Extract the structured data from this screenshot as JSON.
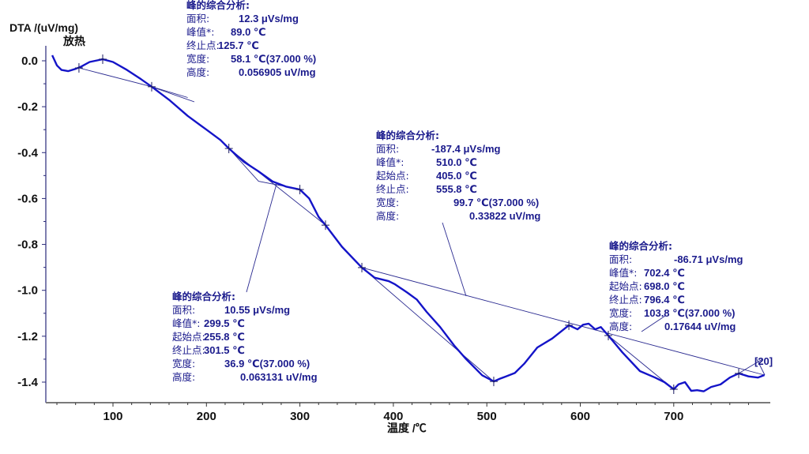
{
  "chart_data": {
    "type": "line",
    "title": "",
    "ylabel": "DTA /(uV/mg)",
    "ylabel_sub": "放热",
    "xlabel": "温度 /℃",
    "xlim": [
      28,
      803
    ],
    "ylim": [
      -1.5,
      0.05
    ],
    "x_ticks": [
      100,
      200,
      300,
      400,
      500,
      600,
      700
    ],
    "y_ticks": [
      0.0,
      -0.2,
      -0.4,
      -0.6,
      -0.8,
      -1.0,
      -1.2,
      -1.4
    ],
    "y_tick_labels": [
      "0.0",
      "-0.2",
      "-0.4",
      "-0.6",
      "-0.8",
      "-1.0",
      "-1.2",
      "-1.4"
    ],
    "grid": false,
    "series": [
      {
        "name": "DTA",
        "color": "#1414c8",
        "points": [
          [
            35,
            0.024
          ],
          [
            40,
            -0.02
          ],
          [
            45,
            -0.04
          ],
          [
            52,
            -0.045
          ],
          [
            60,
            -0.035
          ],
          [
            66,
            -0.025
          ],
          [
            75,
            -0.005
          ],
          [
            89,
            0.007
          ],
          [
            100,
            -0.005
          ],
          [
            115,
            -0.04
          ],
          [
            130,
            -0.08
          ],
          [
            141.4,
            -0.113
          ],
          [
            160,
            -0.17
          ],
          [
            180,
            -0.24
          ],
          [
            200,
            -0.3
          ],
          [
            215,
            -0.345
          ],
          [
            224,
            -0.382
          ],
          [
            240,
            -0.44
          ],
          [
            255,
            -0.48
          ],
          [
            270.8,
            -0.526
          ],
          [
            285,
            -0.548
          ],
          [
            300,
            -0.561
          ],
          [
            310,
            -0.6
          ],
          [
            320,
            -0.68
          ],
          [
            327.4,
            -0.716
          ],
          [
            345,
            -0.81
          ],
          [
            366.3,
            -0.901
          ],
          [
            380,
            -0.945
          ],
          [
            395,
            -0.96
          ],
          [
            401.8,
            -0.974
          ],
          [
            415,
            -1.01
          ],
          [
            425,
            -1.04
          ],
          [
            435.6,
            -1.094
          ],
          [
            450,
            -1.16
          ],
          [
            465,
            -1.24
          ],
          [
            477.9,
            -1.3
          ],
          [
            495,
            -1.37
          ],
          [
            507.4,
            -1.397
          ],
          [
            514,
            -1.385
          ],
          [
            520,
            -1.376
          ],
          [
            530,
            -1.36
          ],
          [
            540,
            -1.32
          ],
          [
            554,
            -1.249
          ],
          [
            570,
            -1.21
          ],
          [
            587.8,
            -1.152
          ],
          [
            597,
            -1.17
          ],
          [
            603,
            -1.15
          ],
          [
            609,
            -1.145
          ],
          [
            616,
            -1.17
          ],
          [
            622,
            -1.16
          ],
          [
            630,
            -1.197
          ],
          [
            645,
            -1.27
          ],
          [
            663.8,
            -1.352
          ],
          [
            680,
            -1.38
          ],
          [
            690,
            -1.4
          ],
          [
            700,
            -1.431
          ],
          [
            705,
            -1.41
          ],
          [
            712,
            -1.4
          ],
          [
            718.7,
            -1.438
          ],
          [
            725,
            -1.435
          ],
          [
            732,
            -1.44
          ],
          [
            740,
            -1.421
          ],
          [
            750,
            -1.41
          ],
          [
            760,
            -1.38
          ],
          [
            769.5,
            -1.362
          ],
          [
            780,
            -1.375
          ],
          [
            790,
            -1.38
          ],
          [
            797,
            -1.369
          ]
        ]
      }
    ],
    "baselines": [
      {
        "points": [
          [
            63.6,
            -0.031
          ],
          [
            141.4,
            -0.113
          ],
          [
            180,
            -0.16
          ]
        ]
      },
      {
        "points": [
          [
            224,
            -0.382
          ],
          [
            255.8,
            -0.525
          ],
          [
            301.5,
            -0.561
          ]
        ]
      },
      {
        "points": [
          [
            224,
            -0.382
          ],
          [
            327.4,
            -0.716
          ]
        ]
      },
      {
        "points": [
          [
            366.3,
            -0.901
          ],
          [
            797,
            -1.369
          ]
        ]
      },
      {
        "points": [
          [
            366.3,
            -0.901
          ],
          [
            507.4,
            -1.397
          ]
        ]
      },
      {
        "points": [
          [
            630,
            -1.197
          ],
          [
            700,
            -1.431
          ]
        ]
      },
      {
        "points": [
          [
            769.5,
            -1.362
          ],
          [
            795,
            -1.3
          ]
        ]
      }
    ],
    "markers": [
      [
        63.6,
        -0.031
      ],
      [
        89,
        0.007
      ],
      [
        141.4,
        -0.113
      ],
      [
        224,
        -0.382
      ],
      [
        300,
        -0.561
      ],
      [
        327.4,
        -0.716
      ],
      [
        366.3,
        -0.901
      ],
      [
        507.4,
        -1.397
      ],
      [
        587.8,
        -1.152
      ],
      [
        630,
        -1.197
      ],
      [
        700,
        -1.431
      ],
      [
        769.5,
        -1.362
      ]
    ],
    "annotations": [
      {
        "heading": "峰的综合分析:",
        "rows": [
          {
            "label": "面积:",
            "value": "12.3 μVs/mg"
          },
          {
            "label": "峰值*:",
            "value": "89.0 ℃"
          },
          {
            "label": "终止点:",
            "value": "125.7 ℃"
          },
          {
            "label": "宽度:",
            "value": "58.1 ℃(37.000 %)"
          },
          {
            "label": "高度:",
            "value": "0.056905 uV/mg"
          }
        ]
      },
      {
        "heading": "峰的综合分析:",
        "rows": [
          {
            "label": "面积:",
            "value": "-187.4 μVs/mg"
          },
          {
            "label": "峰值*:",
            "value": "510.0 ℃"
          },
          {
            "label": "起始点:",
            "value": "405.0 ℃"
          },
          {
            "label": "终止点:",
            "value": "555.8 ℃"
          },
          {
            "label": "宽度:",
            "value": "99.7 ℃(37.000 %)"
          },
          {
            "label": "高度:",
            "value": "0.33822 uV/mg"
          }
        ]
      },
      {
        "heading": "峰的综合分析:",
        "rows": [
          {
            "label": "面积:",
            "value": "10.55 μVs/mg"
          },
          {
            "label": "峰值*:",
            "value": "299.5 ℃"
          },
          {
            "label": "起始点:",
            "value": "255.8 ℃"
          },
          {
            "label": "终止点:",
            "value": "301.5 ℃"
          },
          {
            "label": "宽度:",
            "value": "36.9 ℃(37.000 %)"
          },
          {
            "label": "高度:",
            "value": "0.063131 uV/mg"
          }
        ]
      },
      {
        "heading": "峰的综合分析:",
        "rows": [
          {
            "label": "面积:",
            "value": "-86.71 μVs/mg"
          },
          {
            "label": "峰值*:",
            "value": "702.4 ℃"
          },
          {
            "label": "起始点:",
            "value": "698.0 ℃"
          },
          {
            "label": "终止点:",
            "value": "796.4 ℃"
          },
          {
            "label": "宽度:",
            "value": "103.8 ℃(37.000 %)"
          },
          {
            "label": "高度:",
            "value": "0.17644 uV/mg"
          }
        ]
      }
    ],
    "tag_label": "[20]"
  }
}
